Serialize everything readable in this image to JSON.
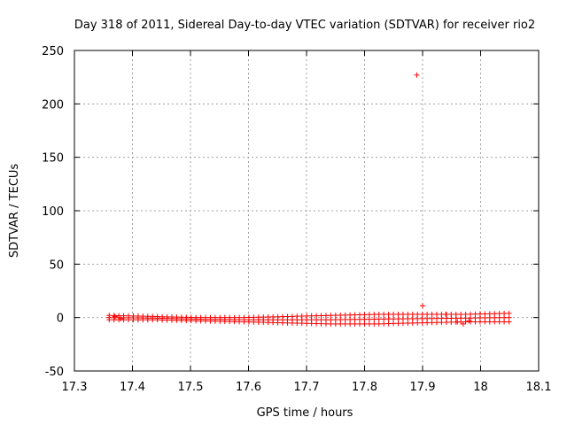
{
  "chart_data": {
    "type": "scatter",
    "title": "Day 318 of 2011, Sidereal Day-to-day VTEC variation (SDTVAR) for receiver rio2",
    "xlabel": "GPS time / hours",
    "ylabel": "SDTVAR / TECUs",
    "xlim": [
      17.3,
      18.1
    ],
    "ylim": [
      -50,
      250
    ],
    "xticks": [
      "17.3",
      "17.4",
      "17.5",
      "17.6",
      "17.7",
      "17.8",
      "17.9",
      "18",
      "18.1"
    ],
    "yticks": [
      "-50",
      "0",
      "50",
      "100",
      "150",
      "200",
      "250"
    ],
    "grid": true,
    "marker": "+",
    "color": "#ff0000",
    "band": {
      "x_start": 17.36,
      "x_end": 18.05,
      "step": 0.0083,
      "lower": [
        -2,
        -2,
        -3,
        -4,
        -5,
        -6,
        -6,
        -5,
        -4,
        -4
      ],
      "upper": [
        2,
        1,
        0,
        0,
        1,
        2,
        3,
        3,
        3,
        4
      ]
    },
    "outliers": [
      {
        "x": 17.89,
        "y": 227
      },
      {
        "x": 17.9,
        "y": 11
      },
      {
        "x": 17.94,
        "y": 3
      },
      {
        "x": 17.96,
        "y": -4
      },
      {
        "x": 17.97,
        "y": -6
      },
      {
        "x": 17.98,
        "y": -3
      },
      {
        "x": 17.37,
        "y": 1
      },
      {
        "x": 17.38,
        "y": -1
      }
    ]
  }
}
